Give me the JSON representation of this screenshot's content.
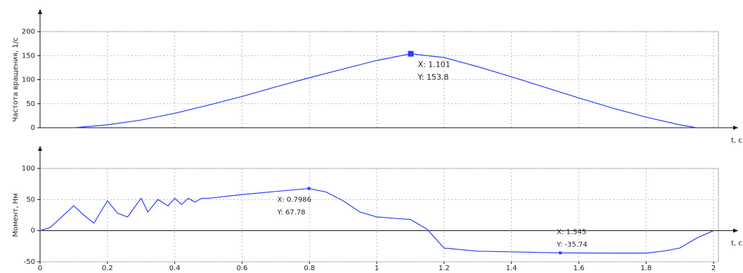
{
  "chart_data": [
    {
      "type": "line",
      "y_label": "Частота вращения, 1/с",
      "x_label": "t, c",
      "xlim": [
        0,
        2
      ],
      "ylim": [
        0,
        200
      ],
      "yticks": [
        0,
        50,
        100,
        150,
        200
      ],
      "grid": true,
      "color": "#2f3cff",
      "x": [
        0.1,
        0.2,
        0.3,
        0.4,
        0.5,
        0.6,
        0.7,
        0.8,
        0.9,
        1.0,
        1.101,
        1.2,
        1.3,
        1.4,
        1.5,
        1.6,
        1.7,
        1.8,
        1.9,
        1.95
      ],
      "values": [
        0,
        6,
        16,
        30,
        47,
        65,
        85,
        104,
        122,
        140,
        153.8,
        146,
        127,
        106,
        84,
        62,
        41,
        22,
        6,
        0
      ],
      "datatips": [
        {
          "x": 1.101,
          "y": 153.8,
          "x_label": "X: 1.101",
          "y_label": "Y: 153.8"
        }
      ]
    },
    {
      "type": "line",
      "y_label": "Момент, Нм",
      "x_label": "t, c",
      "xlim": [
        0,
        2
      ],
      "ylim": [
        -50,
        100
      ],
      "yticks": [
        -50,
        0,
        50,
        100
      ],
      "xticks": [
        0,
        0.2,
        0.4,
        0.6,
        0.8,
        1,
        1.2,
        1.4,
        1.6,
        1.8,
        2
      ],
      "grid": true,
      "color": "#2f3cff",
      "x": [
        0,
        0.03,
        0.06,
        0.1,
        0.13,
        0.16,
        0.2,
        0.23,
        0.26,
        0.3,
        0.32,
        0.35,
        0.38,
        0.4,
        0.42,
        0.44,
        0.46,
        0.48,
        0.5,
        0.6,
        0.7,
        0.7986,
        0.85,
        0.9,
        0.95,
        1.0,
        1.05,
        1.1,
        1.15,
        1.2,
        1.3,
        1.4,
        1.545,
        1.7,
        1.8,
        1.85,
        1.9,
        1.95,
        2.0
      ],
      "values": [
        0,
        5,
        20,
        40,
        25,
        12,
        48,
        28,
        22,
        52,
        30,
        50,
        40,
        52,
        42,
        52,
        46,
        52,
        52,
        58,
        63,
        67.78,
        62,
        48,
        30,
        22,
        20,
        18,
        2,
        -28,
        -33,
        -34,
        -35.74,
        -36,
        -36,
        -33,
        -28,
        -12,
        0
      ],
      "datatips": [
        {
          "x": 0.7986,
          "y": 67.78,
          "x_label": "X: 0.7986",
          "y_label": "Y: 67.78"
        },
        {
          "x": 1.545,
          "y": -35.74,
          "x_label": "X: 1.545",
          "y_label": "Y: -35.74"
        }
      ]
    }
  ]
}
